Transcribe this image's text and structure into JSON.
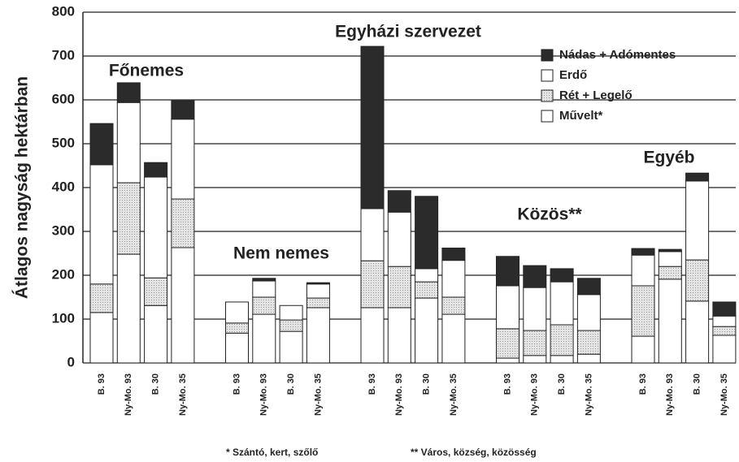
{
  "chart_data": {
    "type": "stacked-bar",
    "ylabel": "Átlagos nagyság hektárban",
    "groups": [
      "Főnemes",
      "Nem nemes",
      "Egyházi szervezet",
      "Közös**",
      "Egyéb"
    ],
    "categories": [
      "B. 93",
      "Ny-Mo. 93",
      "B. 30",
      "Ny-Mo. 35",
      "B. 93",
      "Ny-Mo. 93",
      "B. 30",
      "Ny-Mo. 35",
      "B. 93",
      "Ny-Mo. 93",
      "B. 30",
      "Ny-Mo. 35",
      "B. 93",
      "Ny-Mo. 93",
      "B. 30",
      "Ny-Mo. 35",
      "B. 93",
      "Ny-Mo. 93",
      "B. 30",
      "Ny-Mo. 35"
    ],
    "series": [
      {
        "name": "Művelt*",
        "color": "#ffffff",
        "values": [
          115,
          248,
          131,
          263,
          68,
          111,
          72,
          126,
          126,
          126,
          148,
          111,
          11,
          17,
          17,
          20,
          61,
          191,
          141,
          63
        ]
      },
      {
        "name": "Rét + Legelő",
        "color": "#d9d9d9",
        "values": [
          65,
          163,
          63,
          111,
          23,
          39,
          26,
          22,
          107,
          94,
          37,
          39,
          67,
          57,
          70,
          54,
          115,
          29,
          94,
          20
        ]
      },
      {
        "name": "Erdő",
        "color": "#ffffff",
        "values": [
          272,
          183,
          230,
          182,
          48,
          37,
          33,
          32,
          119,
          124,
          30,
          84,
          98,
          98,
          98,
          82,
          70,
          34,
          180,
          24
        ]
      },
      {
        "name": "Nádas + Adómentes",
        "color": "#2b2b2b",
        "values": [
          94,
          45,
          33,
          42,
          0,
          6,
          0,
          3,
          370,
          49,
          165,
          28,
          67,
          50,
          30,
          37,
          15,
          5,
          18,
          32
        ]
      }
    ],
    "ylim": [
      0,
      800
    ],
    "yticks": [
      0,
      100,
      200,
      300,
      400,
      500,
      600,
      700,
      800
    ],
    "grid": true,
    "legend": "upper right",
    "footnotes": [
      "* Szántó, kert, szőlő",
      "** Város, község, közösség"
    ]
  }
}
